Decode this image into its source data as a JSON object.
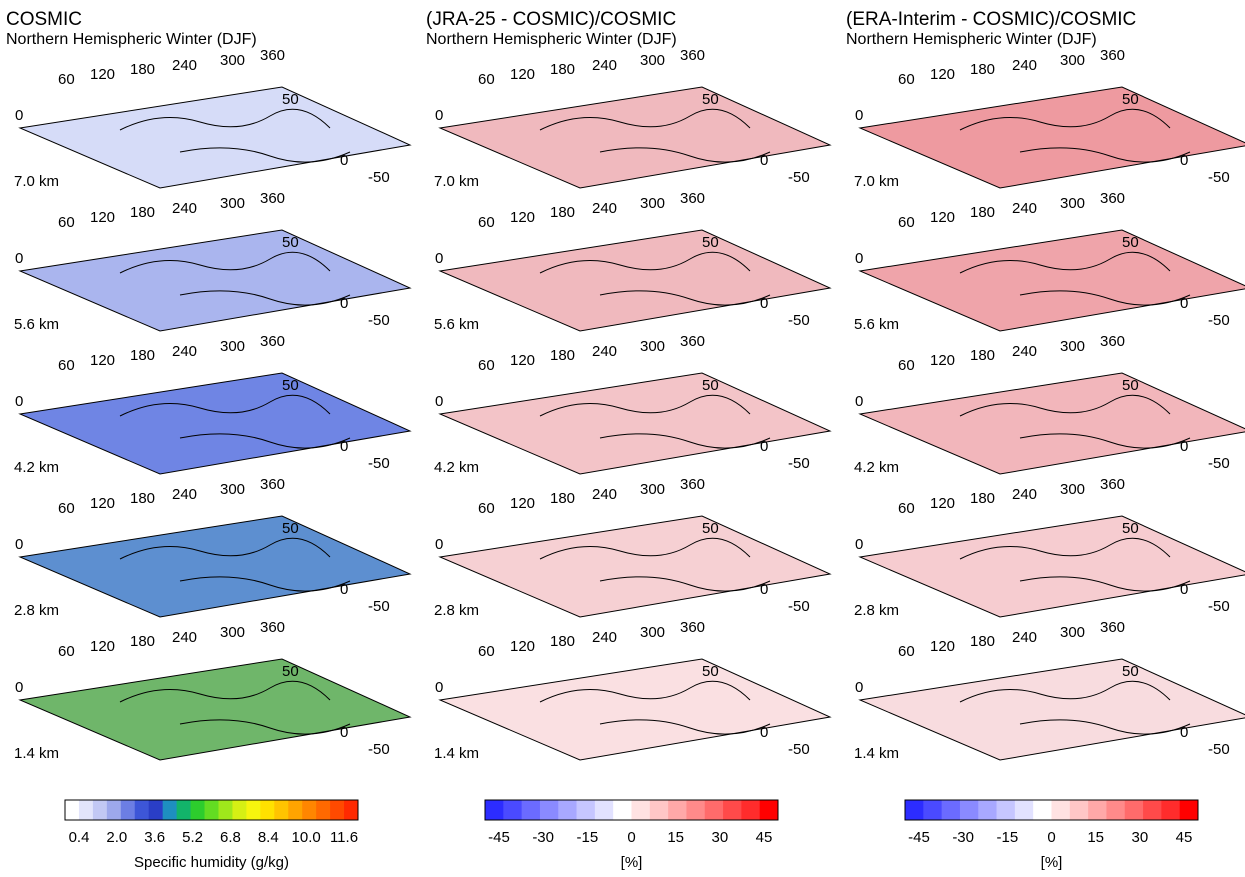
{
  "chart_data": [
    {
      "type": "heatmap",
      "title": "COSMIC",
      "subtitle": "Northern Hemispheric Winter (DJF)",
      "x_ticks": [
        "0",
        "60",
        "120",
        "180",
        "240",
        "300",
        "360"
      ],
      "y_ticks": [
        "50",
        "0",
        "-50"
      ],
      "levels": [
        "7.0 km",
        "5.6 km",
        "4.2 km",
        "2.8 km",
        "1.4 km"
      ],
      "level_colors": [
        "#d6dcf8",
        "#aab5ee",
        "#6f85e4",
        "#5d8fd0",
        "#6fb66a"
      ],
      "colorbar": {
        "colors": [
          "#ffffff",
          "#e2e4fb",
          "#c2c8f4",
          "#9da8ec",
          "#6c7ee4",
          "#3d56d8",
          "#2a3ec6",
          "#1e8fc0",
          "#12b46a",
          "#2dcd2d",
          "#63dc22",
          "#9fe81b",
          "#d6f014",
          "#f7f50e",
          "#ffe100",
          "#ffc400",
          "#ffa400",
          "#ff8600",
          "#ff6900",
          "#ff4a00",
          "#ff2a00"
        ],
        "tick_labels": [
          "0.4",
          "2.0",
          "3.6",
          "5.2",
          "6.8",
          "8.4",
          "10.0",
          "11.6"
        ],
        "label": "Specific humidity (g/kg)"
      }
    },
    {
      "type": "heatmap",
      "title": "(JRA-25 - COSMIC)/COSMIC",
      "subtitle": "Northern Hemispheric Winter (DJF)",
      "x_ticks": [
        "0",
        "60",
        "120",
        "180",
        "240",
        "300",
        "360"
      ],
      "y_ticks": [
        "50",
        "0",
        "-50"
      ],
      "levels": [
        "7.0 km",
        "5.6 km",
        "4.2 km",
        "2.8 km",
        "1.4 km"
      ],
      "level_colors": [
        "#f0b9be",
        "#f0b9be",
        "#f3c4c8",
        "#f6d0d3",
        "#fae0e2"
      ],
      "colorbar": {
        "colors": [
          "#2c2cff",
          "#4a4aff",
          "#6b6bff",
          "#8a8aff",
          "#a8a8ff",
          "#c6c6ff",
          "#e2e2ff",
          "#ffffff",
          "#ffe2e2",
          "#ffc6c6",
          "#ffa8a8",
          "#ff8a8a",
          "#ff6b6b",
          "#ff4a4a",
          "#ff2c2c",
          "#ff0000"
        ],
        "tick_labels": [
          "-45",
          "-30",
          "-15",
          "0",
          "15",
          "30",
          "45"
        ],
        "label": "[%]"
      }
    },
    {
      "type": "heatmap",
      "title": "(ERA-Interim - COSMIC)/COSMIC",
      "subtitle": "Northern Hemispheric Winter (DJF)",
      "x_ticks": [
        "0",
        "60",
        "120",
        "180",
        "240",
        "300",
        "360"
      ],
      "y_ticks": [
        "50",
        "0",
        "-50"
      ],
      "levels": [
        "7.0 km",
        "5.6 km",
        "4.2 km",
        "2.8 km",
        "1.4 km"
      ],
      "level_colors": [
        "#ee9aa0",
        "#efa4aa",
        "#f2b6bb",
        "#f6ccd0",
        "#f8dcdf"
      ],
      "colorbar": {
        "colors": [
          "#2c2cff",
          "#4a4aff",
          "#6b6bff",
          "#8a8aff",
          "#a8a8ff",
          "#c6c6ff",
          "#e2e2ff",
          "#ffffff",
          "#ffe2e2",
          "#ffc6c6",
          "#ffa8a8",
          "#ff8a8a",
          "#ff6b6b",
          "#ff4a4a",
          "#ff2c2c",
          "#ff0000"
        ],
        "tick_labels": [
          "-45",
          "-30",
          "-15",
          "0",
          "15",
          "30",
          "45"
        ],
        "label": "[%]"
      }
    }
  ]
}
